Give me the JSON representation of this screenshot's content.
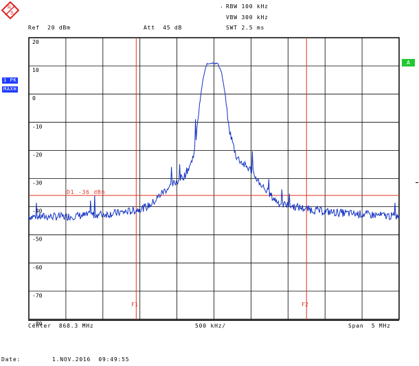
{
  "header": {
    "rbw": "RBW 100 kHz",
    "vbw": "VBW 300 kHz",
    "swt": "SWT 2.5 ms",
    "ref": "Ref  20 dBm",
    "att": "Att  45 dB"
  },
  "side": {
    "trace_mode": "1 PK",
    "detector": "MAXH",
    "trace_badge": "A"
  },
  "marker_line": {
    "label": "D1 -36 dBm",
    "value": -36
  },
  "markers": [
    {
      "label": "F1",
      "freq_mhz": 867.25
    },
    {
      "label": "F2",
      "freq_mhz": 869.55
    }
  ],
  "footer": {
    "center": "Center  868.3 MHz",
    "per_div": "500 kHz/",
    "span": "Span  5 MHz",
    "date_label": "Date:",
    "date": "1.NOV.2016  09:49:55"
  },
  "colors": {
    "trace": "#1030c0",
    "marker": "#e03020",
    "grid": "#000000",
    "badge_green": "#22c832",
    "side_blue": "#1e3cff"
  },
  "chart_data": {
    "type": "line",
    "title": "",
    "xlabel": "",
    "ylabel": "",
    "center_mhz": 868.3,
    "span_mhz": 5,
    "xlim": [
      865.8,
      870.8
    ],
    "ylim": [
      -80,
      20
    ],
    "y_ticks": [
      20,
      10,
      0,
      -10,
      -20,
      -30,
      -40,
      -50,
      -60,
      -70,
      -80
    ],
    "grid": true,
    "series": [
      {
        "x": [
          865.8,
          866.0,
          866.3,
          866.6,
          866.9,
          867.2,
          867.4,
          867.5,
          867.6,
          867.7,
          867.8,
          867.9,
          868.0,
          868.05,
          868.1,
          868.15,
          868.2,
          868.25,
          868.3,
          868.35,
          868.4,
          868.45,
          868.5,
          868.6,
          868.7,
          868.8,
          868.9,
          869.0,
          869.1,
          869.2,
          869.4,
          869.6,
          869.9,
          870.2,
          870.5,
          870.8
        ],
        "y": [
          -43.5,
          -43.5,
          -43.5,
          -43,
          -42.5,
          -41.5,
          -40,
          -38,
          -35,
          -33,
          -31,
          -29,
          -24,
          -18,
          -5,
          5,
          10.5,
          11,
          11,
          10.8,
          8,
          0,
          -12,
          -22,
          -25,
          -27,
          -31,
          -34,
          -37,
          -39,
          -40,
          -41,
          -42,
          -42.5,
          -43,
          -43.5
        ]
      }
    ]
  }
}
